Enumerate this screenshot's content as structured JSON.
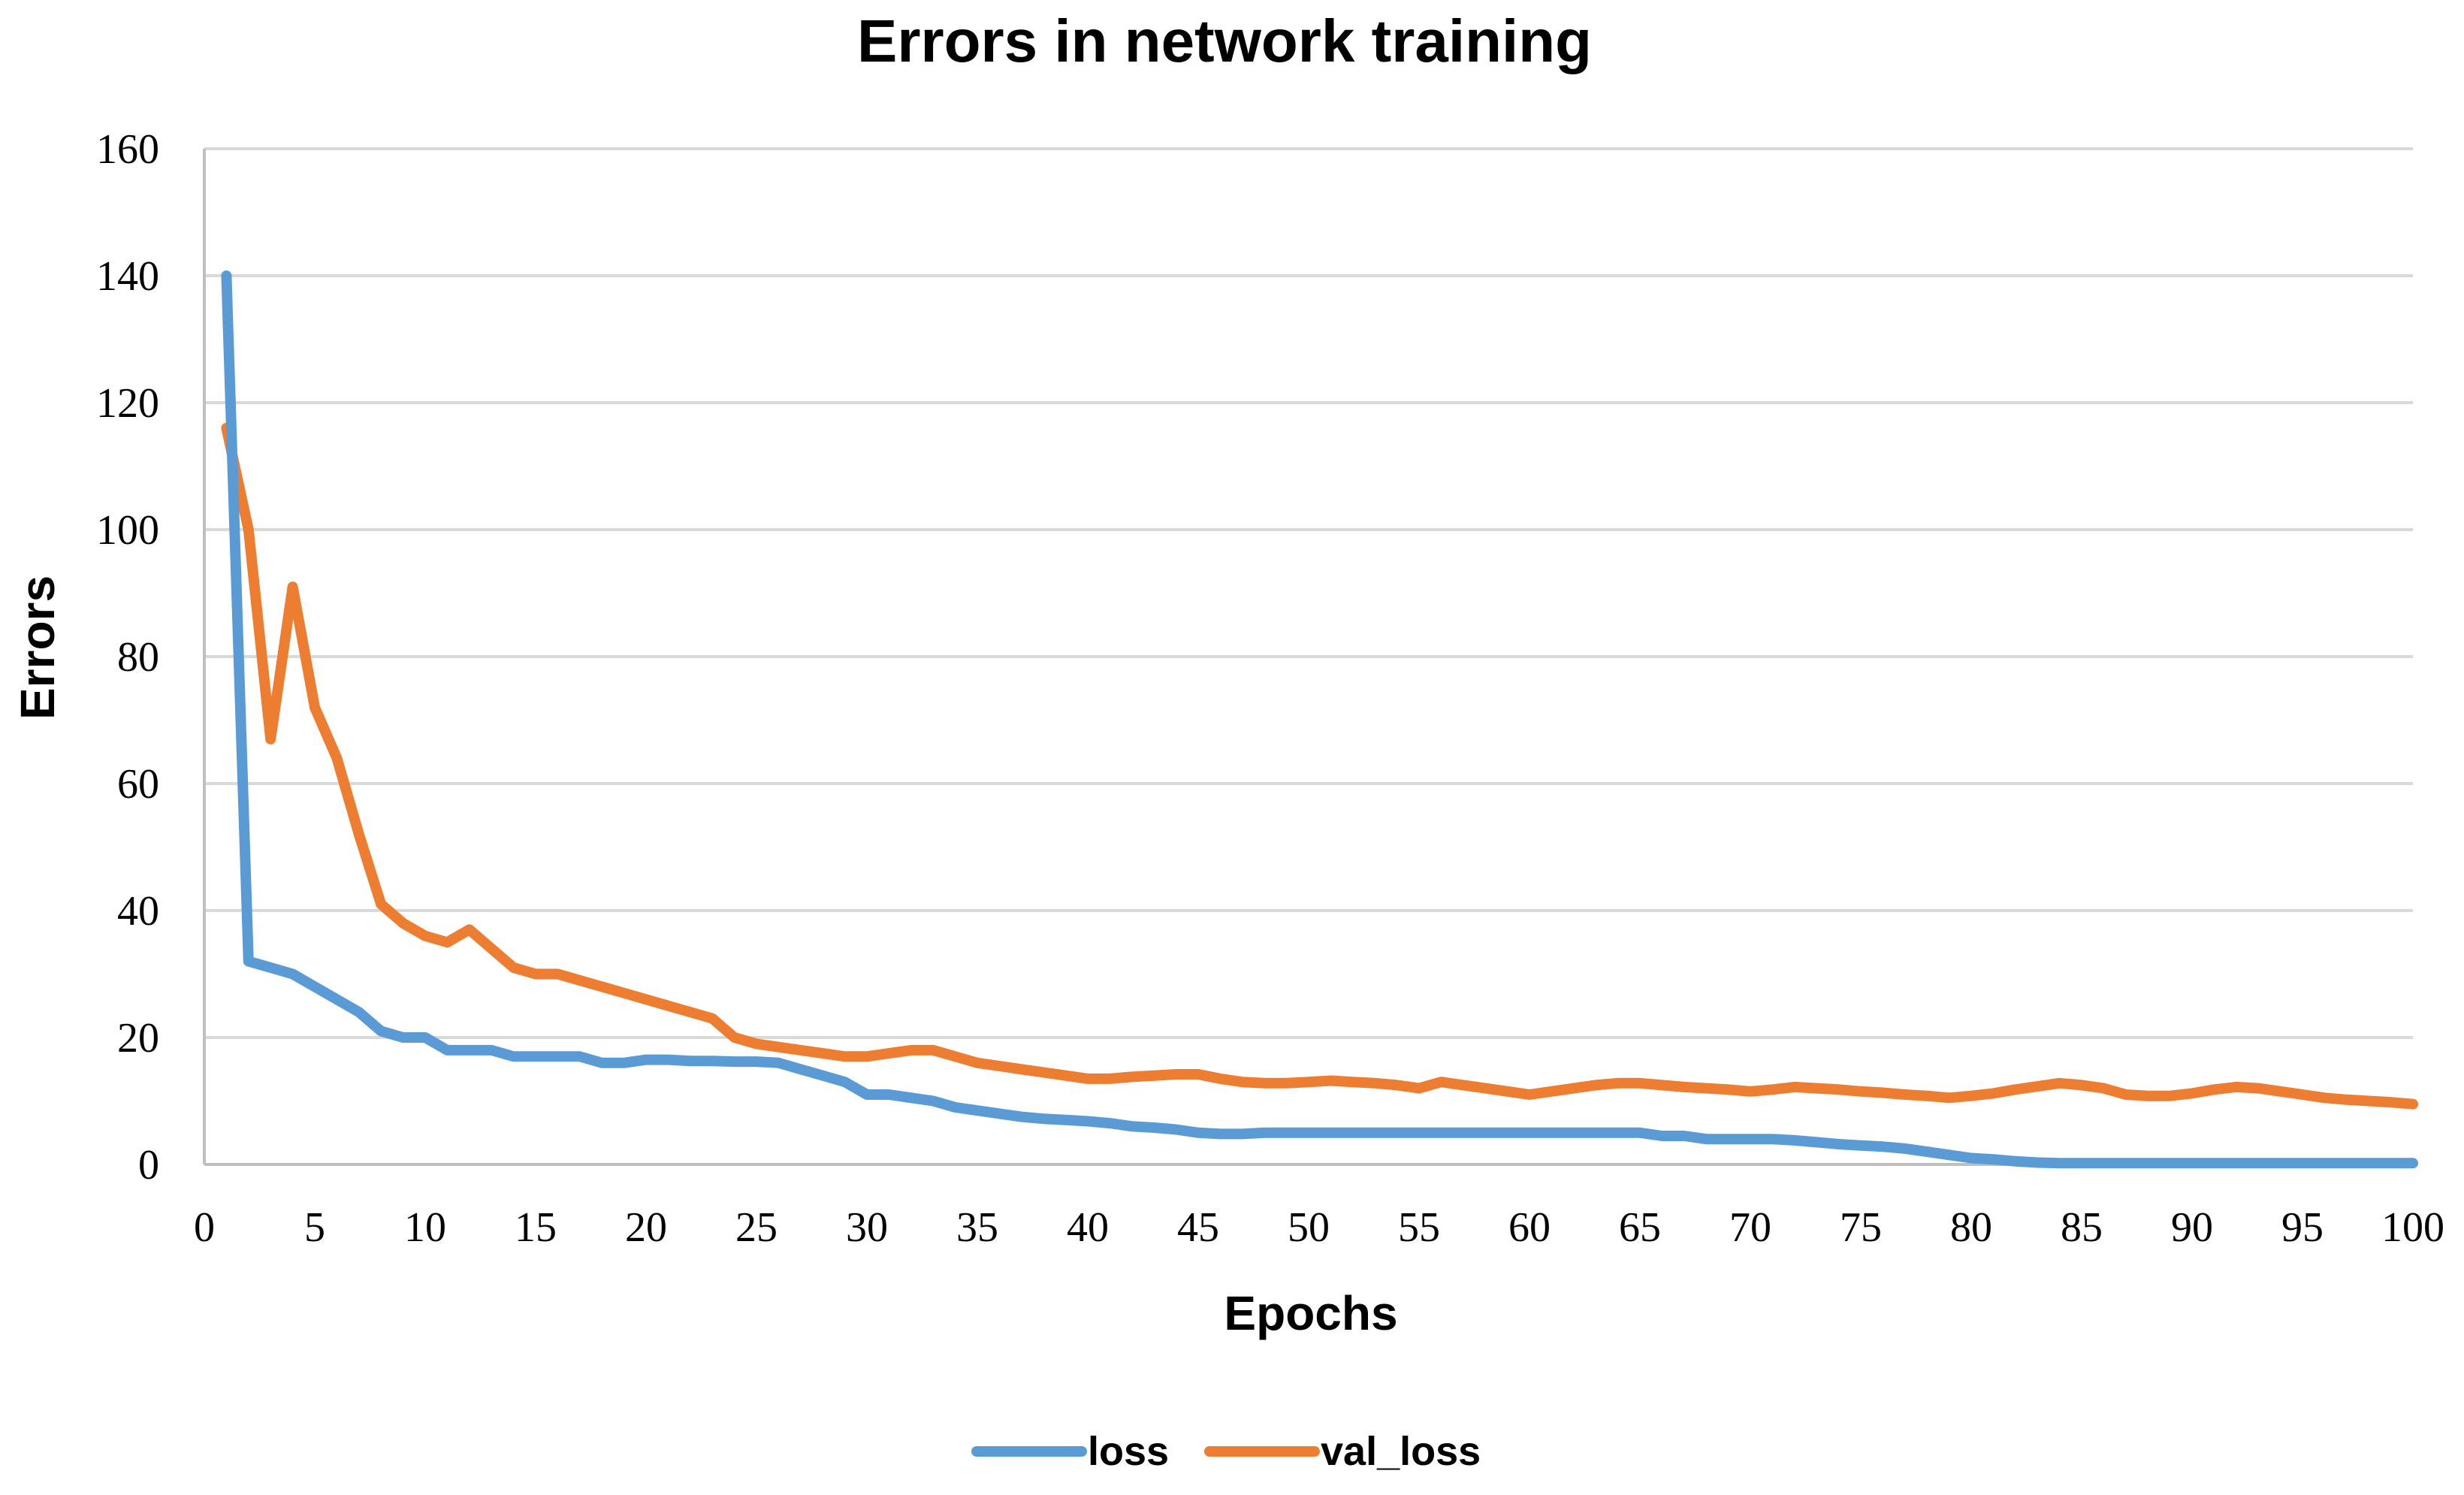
{
  "chart_data": {
    "type": "line",
    "title": "Errors in network training",
    "xlabel": "Epochs",
    "ylabel": "Errors",
    "xlim": [
      0,
      100
    ],
    "ylim": [
      0,
      160
    ],
    "xticks": [
      0,
      5,
      10,
      15,
      20,
      25,
      30,
      35,
      40,
      45,
      50,
      55,
      60,
      65,
      70,
      75,
      80,
      85,
      90,
      95,
      100
    ],
    "yticks": [
      0,
      20,
      40,
      60,
      80,
      100,
      120,
      140,
      160
    ],
    "grid": "horizontal",
    "legend_position": "bottom",
    "series": [
      {
        "name": "loss",
        "color": "#5b9bd5",
        "x": [
          1,
          2,
          3,
          4,
          5,
          6,
          7,
          8,
          9,
          10,
          11,
          12,
          13,
          14,
          15,
          16,
          17,
          18,
          19,
          20,
          21,
          22,
          23,
          24,
          25,
          26,
          27,
          28,
          29,
          30,
          31,
          32,
          33,
          34,
          35,
          36,
          37,
          38,
          39,
          40,
          41,
          42,
          43,
          44,
          45,
          46,
          47,
          48,
          49,
          50,
          51,
          52,
          53,
          54,
          55,
          56,
          57,
          58,
          59,
          60,
          61,
          62,
          63,
          64,
          65,
          66,
          67,
          68,
          69,
          70,
          71,
          72,
          73,
          74,
          75,
          76,
          77,
          78,
          79,
          80,
          81,
          82,
          83,
          84,
          85,
          86,
          87,
          88,
          89,
          90,
          91,
          92,
          93,
          94,
          95,
          96,
          97,
          98,
          99,
          100
        ],
        "values": [
          140,
          32,
          31,
          30,
          28,
          26,
          24,
          21,
          20,
          20,
          18,
          18,
          18,
          17,
          17,
          17,
          17,
          16,
          16,
          16.5,
          16.5,
          16.3,
          16.3,
          16.2,
          16.2,
          16,
          15,
          14,
          13,
          11,
          11,
          10.5,
          10,
          9,
          8.5,
          8,
          7.5,
          7.2,
          7,
          6.8,
          6.5,
          6,
          5.8,
          5.5,
          5,
          4.8,
          4.8,
          5,
          5,
          5,
          5,
          5,
          5,
          5,
          5,
          5,
          5,
          5,
          5,
          5,
          5,
          5,
          5,
          5,
          5,
          4.5,
          4.5,
          4,
          4,
          4,
          4,
          3.8,
          3.5,
          3.2,
          3,
          2.8,
          2.5,
          2,
          1.5,
          1,
          0.8,
          0.5,
          0.3,
          0.2,
          0.2,
          0.2,
          0.2,
          0.2,
          0.2,
          0.2,
          0.2,
          0.2,
          0.2,
          0.2,
          0.2,
          0.2,
          0.2,
          0.2,
          0.2,
          0.2
        ]
      },
      {
        "name": "val_loss",
        "color": "#ed7d31",
        "x": [
          1,
          2,
          3,
          4,
          5,
          6,
          7,
          8,
          9,
          10,
          11,
          12,
          13,
          14,
          15,
          16,
          17,
          18,
          19,
          20,
          21,
          22,
          23,
          24,
          25,
          26,
          27,
          28,
          29,
          30,
          31,
          32,
          33,
          34,
          35,
          36,
          37,
          38,
          39,
          40,
          41,
          42,
          43,
          44,
          45,
          46,
          47,
          48,
          49,
          50,
          51,
          52,
          53,
          54,
          55,
          56,
          57,
          58,
          59,
          60,
          61,
          62,
          63,
          64,
          65,
          66,
          67,
          68,
          69,
          70,
          71,
          72,
          73,
          74,
          75,
          76,
          77,
          78,
          79,
          80,
          81,
          82,
          83,
          84,
          85,
          86,
          87,
          88,
          89,
          90,
          91,
          92,
          93,
          94,
          95,
          96,
          97,
          98,
          99,
          100
        ],
        "values": [
          116,
          100,
          67,
          91,
          72,
          64,
          52,
          41,
          38,
          36,
          35,
          37,
          34,
          31,
          30,
          30,
          29,
          28,
          27,
          26,
          25,
          24,
          23,
          20,
          19,
          18.5,
          18,
          17.5,
          17,
          17,
          17.5,
          18,
          18,
          17,
          16,
          15.5,
          15,
          14.5,
          14,
          13.5,
          13.5,
          13.8,
          14,
          14.2,
          14.2,
          13.5,
          13,
          12.8,
          12.8,
          13,
          13.2,
          13,
          12.8,
          12.5,
          12,
          13,
          12.5,
          12,
          11.5,
          11,
          11.5,
          12,
          12.5,
          12.8,
          12.8,
          12.5,
          12.2,
          12,
          11.8,
          11.5,
          11.8,
          12.2,
          12,
          11.8,
          11.5,
          11.3,
          11,
          10.8,
          10.5,
          10.8,
          11.2,
          11.8,
          12.3,
          12.8,
          12.5,
          12,
          11,
          10.8,
          10.8,
          11.2,
          11.8,
          12.2,
          12,
          11.5,
          11,
          10.5,
          10.2,
          10,
          9.8,
          9.5
        ]
      }
    ]
  }
}
